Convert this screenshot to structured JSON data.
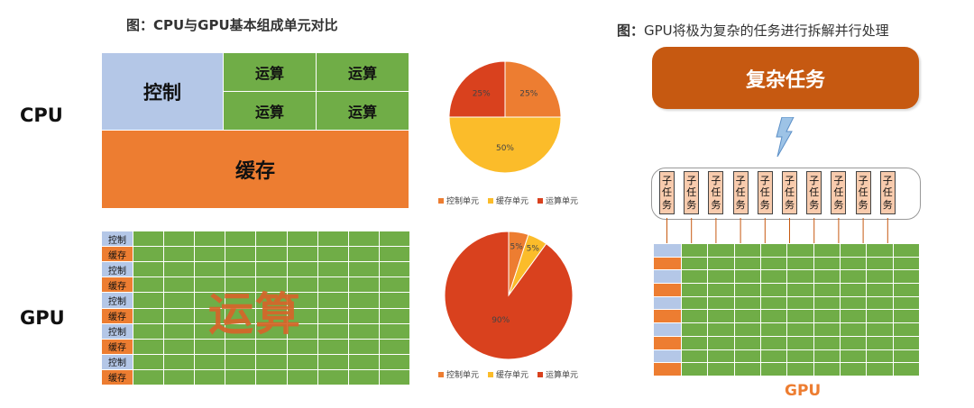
{
  "left_title": "图：CPU与GPU基本组成单元对比",
  "right_title_prefix": "图：",
  "right_title_rest": "GPU将极为复杂的任务进行拆解并行处理",
  "cpu": {
    "label": "CPU",
    "control": "控制",
    "alu": [
      "运算",
      "运算",
      "运算",
      "运算"
    ],
    "cache": "缓存"
  },
  "gpu_left": {
    "label": "GPU",
    "row_labels": [
      "控制",
      "缓存",
      "控制",
      "缓存",
      "控制",
      "缓存",
      "控制",
      "缓存",
      "控制",
      "缓存"
    ],
    "watermark": "运算"
  },
  "pie_cpu": {
    "slices": [
      {
        "name": "控制单元",
        "value": 25,
        "label": "25%",
        "color": "#ed7d31"
      },
      {
        "name": "缓存单元",
        "value": 50,
        "label": "50%",
        "color": "#fbbc2a"
      },
      {
        "name": "运算单元",
        "value": 25,
        "label": "25%",
        "color": "#d9411e"
      }
    ]
  },
  "pie_gpu": {
    "slices": [
      {
        "name": "控制单元",
        "value": 5,
        "label": "5%",
        "color": "#ed7d31"
      },
      {
        "name": "缓存单元",
        "value": 5,
        "label": "5%",
        "color": "#fbbc2a"
      },
      {
        "name": "运算单元",
        "value": 90,
        "label": "90%",
        "color": "#d9411e"
      }
    ]
  },
  "legend": [
    {
      "label": "控制单元",
      "color": "#ed7d31"
    },
    {
      "label": "缓存单元",
      "color": "#fbbc2a"
    },
    {
      "label": "运算单元",
      "color": "#d9411e"
    }
  ],
  "complex_task": "复杂任务",
  "sub_task_chars": [
    "子",
    "任",
    "务"
  ],
  "gpu_caption": "GPU",
  "colors": {
    "control": "#b4c7e7",
    "alu": "#70ad47",
    "cache": "#ed7d31",
    "task": "#c65911",
    "subtask": "#f8cbad",
    "lightning": "#9dc3e6"
  }
}
